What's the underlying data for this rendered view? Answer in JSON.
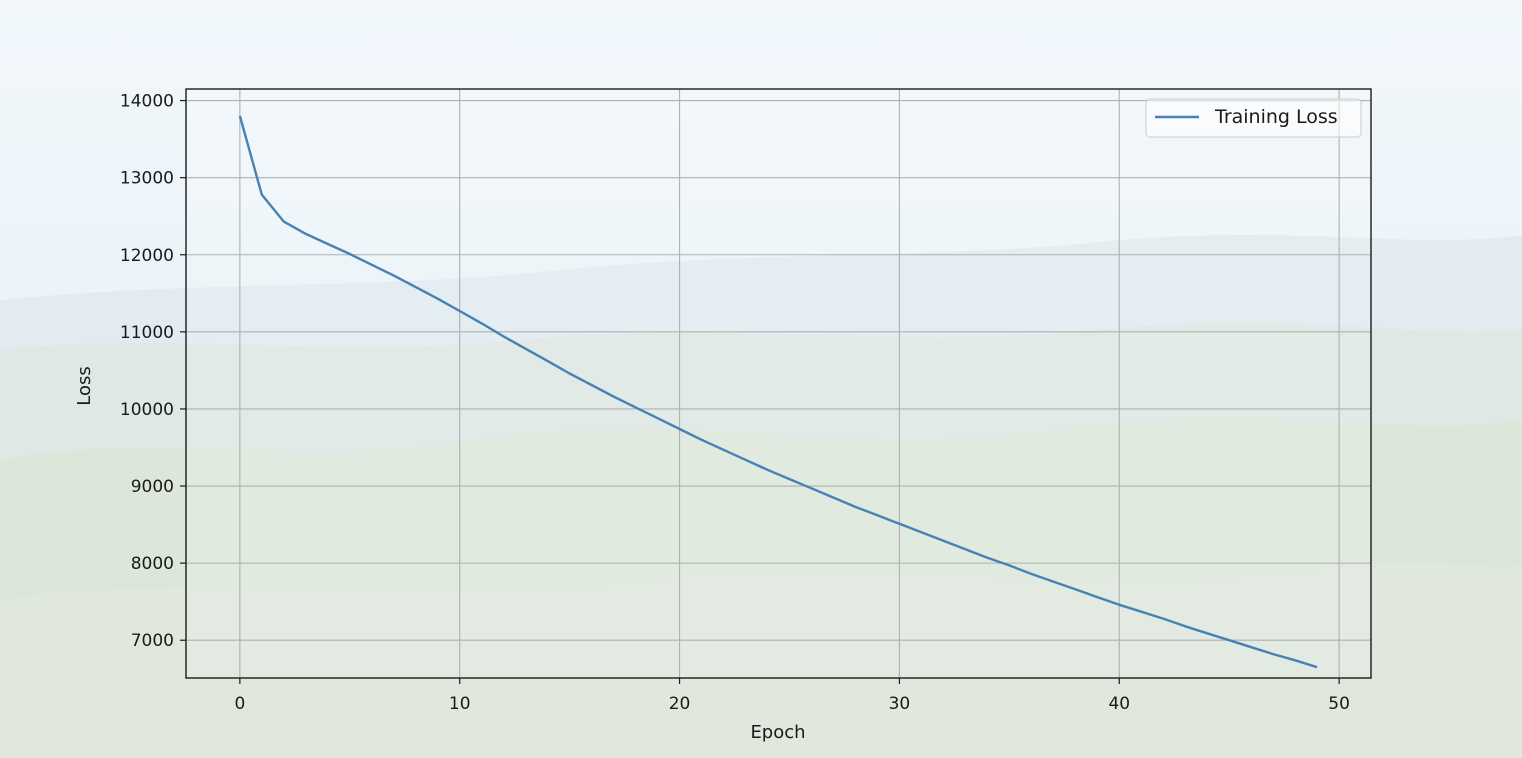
{
  "chart_data": {
    "type": "line",
    "title": "",
    "xlabel": "Epoch",
    "ylabel": "Loss",
    "xlim": [
      -2.45,
      51.45
    ],
    "ylim": [
      6510,
      14150
    ],
    "xticks": [
      0,
      10,
      20,
      30,
      40,
      50
    ],
    "yticks": [
      7000,
      8000,
      9000,
      10000,
      11000,
      12000,
      13000,
      14000
    ],
    "grid": true,
    "legend_position": "top-right",
    "series": [
      {
        "name": "Training Loss",
        "color": "#4682b4",
        "x": [
          0,
          1,
          2,
          3,
          4,
          5,
          6,
          7,
          8,
          9,
          10,
          11,
          12,
          13,
          14,
          15,
          16,
          17,
          18,
          19,
          20,
          21,
          22,
          23,
          24,
          25,
          26,
          27,
          28,
          29,
          30,
          31,
          32,
          33,
          34,
          35,
          36,
          37,
          38,
          39,
          40,
          41,
          42,
          43,
          44,
          45,
          46,
          47,
          48,
          49
        ],
        "y": [
          13800,
          12780,
          12430,
          12270,
          12140,
          12010,
          11870,
          11730,
          11580,
          11430,
          11270,
          11110,
          10940,
          10780,
          10620,
          10460,
          10310,
          10160,
          10020,
          9880,
          9740,
          9600,
          9470,
          9340,
          9210,
          9090,
          8970,
          8850,
          8730,
          8620,
          8510,
          8400,
          8290,
          8180,
          8070,
          7970,
          7860,
          7760,
          7660,
          7560,
          7460,
          7370,
          7280,
          7180,
          7090,
          7000,
          6910,
          6820,
          6740,
          6650
        ]
      }
    ]
  }
}
